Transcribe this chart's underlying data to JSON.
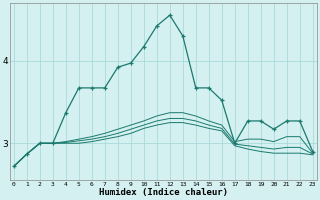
{
  "xlabel": "Humidex (Indice chaleur)",
  "bg_color": "#d4f0f0",
  "grid_color": "#aadada",
  "line_color": "#1a7a6e",
  "x_ticks": [
    0,
    1,
    2,
    3,
    4,
    5,
    6,
    7,
    8,
    9,
    10,
    11,
    12,
    13,
    14,
    15,
    16,
    17,
    18,
    19,
    20,
    21,
    22,
    23
  ],
  "y_ticks": [
    3,
    4
  ],
  "ylim": [
    2.55,
    4.7
  ],
  "xlim": [
    -0.3,
    23.3
  ],
  "series": {
    "main": [
      2.72,
      2.87,
      3.0,
      3.0,
      3.37,
      3.67,
      3.67,
      3.67,
      3.92,
      3.97,
      4.17,
      4.42,
      4.55,
      4.3,
      3.67,
      3.67,
      3.52,
      3.0,
      3.27,
      3.27,
      3.17,
      3.27,
      3.27,
      2.9
    ],
    "line2": [
      2.72,
      2.87,
      3.0,
      3.0,
      3.0,
      3.0,
      3.02,
      3.05,
      3.08,
      3.12,
      3.18,
      3.22,
      3.25,
      3.25,
      3.22,
      3.18,
      3.15,
      2.97,
      2.93,
      2.9,
      2.88,
      2.88,
      2.88,
      2.86
    ],
    "line3": [
      2.72,
      2.87,
      3.0,
      3.0,
      3.01,
      3.03,
      3.05,
      3.08,
      3.12,
      3.17,
      3.22,
      3.27,
      3.3,
      3.3,
      3.27,
      3.22,
      3.18,
      2.99,
      2.97,
      2.95,
      2.93,
      2.95,
      2.95,
      2.87
    ],
    "line4": [
      2.72,
      2.87,
      3.0,
      3.0,
      3.02,
      3.05,
      3.08,
      3.12,
      3.17,
      3.22,
      3.27,
      3.33,
      3.37,
      3.37,
      3.33,
      3.27,
      3.22,
      3.02,
      3.05,
      3.05,
      3.02,
      3.08,
      3.08,
      2.88
    ]
  }
}
